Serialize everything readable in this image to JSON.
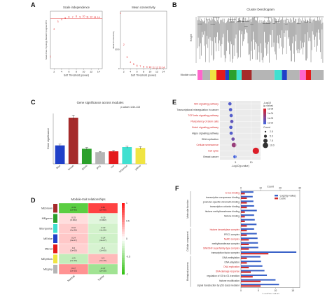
{
  "panel_labels": {
    "a": "A",
    "b": "B",
    "c": "C",
    "d": "D",
    "e": "E",
    "f": "F"
  },
  "colors": {
    "turquoise": "#40e0d0",
    "brown": "#a52a2a",
    "green": "#2ca02c",
    "grey": "#b5b5b5",
    "red": "#e41a1c",
    "blue": "#2040c8",
    "yellow": "#f0e442",
    "pink": "#ff66cc",
    "accent_red": "#d62728",
    "bar_blue": "#3b63c8",
    "bar_red": "#d12a2a"
  },
  "chart_data": [
    {
      "id": "A1",
      "type": "scatter",
      "title": "Scale independence",
      "xlabel": "Soft Threshold (power)",
      "ylabel": "Scale Free Topology Model Fit,signed R^2",
      "xticks": [
        2,
        4,
        6,
        8,
        10,
        12,
        14
      ],
      "xlim": [
        1,
        15
      ],
      "ylim": [
        -0.2,
        1.0
      ],
      "x": [
        1,
        2,
        3,
        4,
        5,
        6,
        7,
        8,
        9,
        10,
        11,
        12,
        13,
        14
      ],
      "values": [
        0.05,
        0.62,
        0.78,
        0.83,
        0.86,
        0.88,
        0.87,
        0.89,
        0.88,
        0.89,
        0.88,
        0.88,
        0.87,
        0.87
      ],
      "threshold_line": 0.85
    },
    {
      "id": "A2",
      "type": "scatter",
      "title": "Mean connectivity",
      "xlabel": "Soft Threshold (power)",
      "ylabel": "Mean Connectivity",
      "xticks": [
        2,
        4,
        6,
        8,
        10,
        12,
        14
      ],
      "yticks": [
        0,
        1000
      ],
      "xlim": [
        1,
        15
      ],
      "ylim": [
        0,
        3000
      ],
      "x": [
        1,
        2,
        3,
        4,
        5,
        6,
        7,
        8,
        9,
        10,
        11,
        12,
        13,
        14
      ],
      "values": [
        2900,
        1250,
        600,
        340,
        220,
        160,
        120,
        100,
        85,
        75,
        68,
        62,
        58,
        55
      ]
    },
    {
      "id": "B",
      "type": "dendrogram",
      "title": "Cluster Dendrogram",
      "ylabel": "Height",
      "row_label": "Module colors",
      "module_colors": [
        "#ff66cc",
        "#b5b5b5",
        "#f0e442",
        "#e41a1c",
        "#2040c8",
        "#2ca02c",
        "#40e0d0",
        "#a52a2a",
        "#b5b5b5",
        "#40e0d0",
        "#2040c8",
        "#b5b5b5",
        "#ff66cc",
        "#e41a1c",
        "#b5b5b5"
      ],
      "module_widths": [
        4,
        6,
        5,
        7,
        3,
        6,
        4,
        8,
        18,
        6,
        4,
        10,
        5,
        4,
        10
      ]
    },
    {
      "id": "C",
      "type": "bar",
      "title": "Gene significance across modules",
      "subtitle": "p-value=1.6e-115",
      "xlabel": "",
      "ylabel": "Gene significance",
      "categories": [
        "blue",
        "brown",
        "green",
        "grey",
        "red",
        "turquoise",
        "yellow"
      ],
      "values": [
        0.22,
        0.55,
        0.18,
        0.14,
        0.15,
        0.2,
        0.19
      ],
      "errors": [
        0.015,
        0.03,
        0.015,
        0.008,
        0.012,
        0.012,
        0.015
      ],
      "ylim": [
        0,
        0.6
      ]
    },
    {
      "id": "D",
      "type": "heatmap",
      "title": "Module-trait relationships",
      "rows": [
        "MEbrown",
        "MEgreen",
        "MEturquoise",
        "MEblue",
        "MEred",
        "MEyellow",
        "MEgrey"
      ],
      "columns": [
        "Normal",
        "Tumor"
      ],
      "row_colors": [
        "#a52a2a",
        "#2ca02c",
        "#40e0d0",
        "#2040c8",
        "#e41a1c",
        "#f0e442",
        "#b5b5b5"
      ],
      "correlations": [
        [
          -0.82,
          0.82
        ],
        [
          0.15,
          -0.15
        ],
        [
          0.22,
          -0.22
        ],
        [
          0.24,
          -0.24
        ],
        [
          0.2,
          -0.2
        ],
        [
          -0.3,
          0.3
        ],
        [
          0.47,
          -0.47
        ]
      ],
      "cell_text": [
        [
          "-0.82\n(2e-80)",
          "0.82\n(2e-80)"
        ],
        [
          "0.15\n(0.002)",
          "-0.15\n(0.002)"
        ],
        [
          "0.22\n(4e-06)",
          "-0.22\n(4e-06)"
        ],
        [
          "0.24\n(3e-07)",
          "-0.24\n(3e-07)"
        ],
        [
          "0.2\n(2e-05)",
          "-0.2\n(2e-05)"
        ],
        [
          "-0.3\n(1e-10)",
          "0.3\n(1e-10)"
        ],
        [
          "0.47\n(2e-25)",
          "-0.47\n(2e-25)"
        ]
      ],
      "scale_ticks": [
        "1",
        "0.5",
        "0",
        "-0.5",
        "-1"
      ]
    },
    {
      "id": "E",
      "type": "scatter",
      "title": "",
      "xlabel": "-Log10(p-value)",
      "xticks": [
        5,
        10
      ],
      "xlim": [
        0,
        13
      ],
      "categories": [
        "Wnt signaling pathway",
        "Transcriptional misregulation in cancer",
        "TGF-beta signaling pathway",
        "Pluripotency of stem cells",
        "Notch signaling pathway",
        "Hippo signaling pathway",
        "DNA replication",
        "Cellular senescence",
        "Cell cycle",
        "Breast cancer"
      ],
      "highlight": [
        true,
        false,
        true,
        true,
        true,
        false,
        false,
        true,
        true,
        false
      ],
      "x": [
        3.2,
        3.4,
        3.6,
        3.8,
        3.5,
        3.6,
        4.2,
        4.5,
        11.5,
        4.8
      ],
      "size": [
        3,
        3,
        3,
        3,
        3,
        3,
        3,
        6,
        10,
        3
      ],
      "color_value": [
        1.5,
        1.5,
        1.5,
        1.4,
        1.5,
        1.5,
        1.3,
        1.0,
        0.5,
        1.6
      ],
      "legend": {
        "color_title": "-Log10\n(p-value)",
        "color_ticks": [
          "1e-05",
          "1e-04",
          "1e-03",
          "1e-02"
        ],
        "size_title": "Count",
        "size_ticks": [
          "2.5",
          "5.0",
          "7.5",
          "10.0"
        ]
      }
    },
    {
      "id": "F",
      "type": "bar",
      "title": "",
      "xlabel": "-Log10(p-value)",
      "x2label": "Count",
      "xticks": [
        0,
        5,
        10,
        15
      ],
      "x2ticks": [
        0,
        10,
        20,
        30
      ],
      "xlim": [
        0,
        17
      ],
      "series_names": [
        "-Log10(p-value)",
        "Count"
      ],
      "groups": [
        "Molecular function",
        "Cellular component",
        "Biological process"
      ],
      "group_spans": [
        [
          0,
          7
        ],
        [
          8,
          13
        ],
        [
          14,
          20
        ]
      ],
      "categories": [
        "E-box binding",
        "transcription corepressor binding",
        "promoter-specific chromatin binding",
        "transcription cofactor binding",
        "histone methyltransferase binding",
        "histone binding",
        "",
        "",
        "histone deacetylase complex",
        "PRC1 complex",
        "NuRD complex",
        "methyltransferase complex",
        "SWI/SNF superfamily-type complex",
        "transcription factor complex",
        "DNA methylation",
        "DNA alkylation",
        "DNA replication",
        "DNA damage response",
        "regulation of G0 to G1 transition",
        "histone modification",
        "signal transduction by p53 class mediator"
      ],
      "highlight": [
        true,
        false,
        false,
        false,
        false,
        false,
        false,
        false,
        true,
        false,
        true,
        false,
        true,
        false,
        false,
        false,
        true,
        true,
        false,
        false,
        false
      ],
      "pvalue": [
        3.6,
        3.4,
        3.6,
        3.8,
        4.6,
        3.8,
        4.0,
        4.5,
        3.8,
        4.6,
        4.8,
        4.9,
        5.0,
        16.0,
        5.6,
        5.8,
        6.2,
        6.8,
        7.5,
        10.0,
        11.0
      ],
      "count": [
        2,
        3,
        3,
        3,
        2,
        2,
        2,
        3,
        3,
        3,
        4,
        4,
        4,
        14,
        3,
        3,
        4,
        5,
        6,
        10,
        10
      ]
    }
  ]
}
